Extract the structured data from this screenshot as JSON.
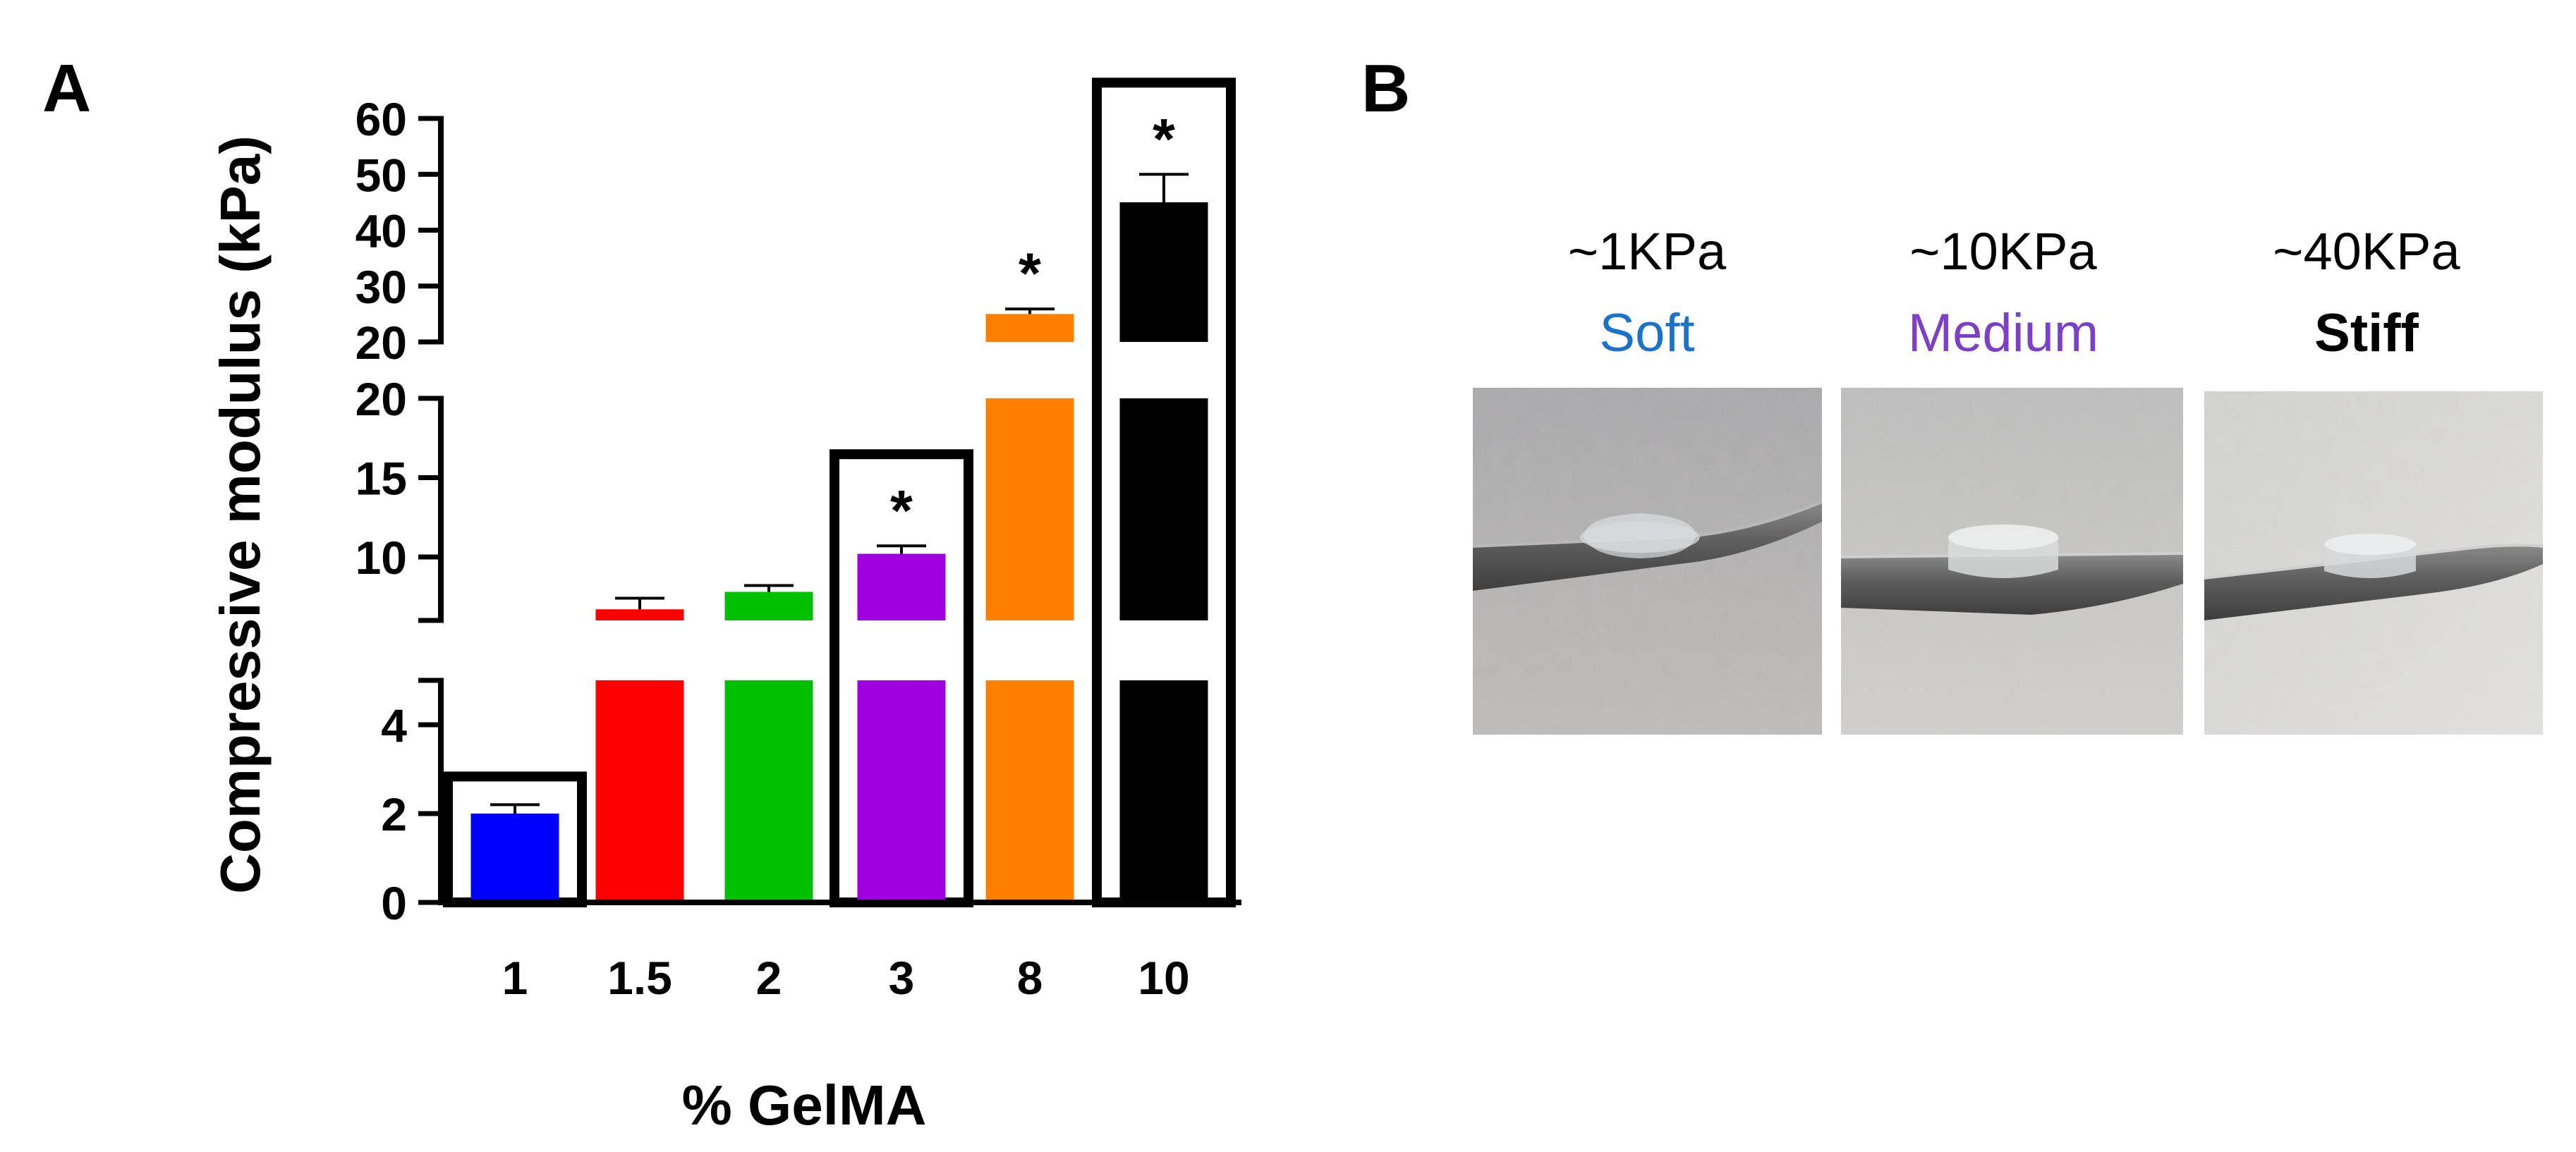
{
  "panels": {
    "a_label": "A",
    "b_label": "B"
  },
  "chart_data": {
    "type": "bar",
    "title": "",
    "xlabel": "% GelMA",
    "ylabel": "Compressive modulus (kPa)",
    "categories": [
      "1",
      "1.5",
      "2",
      "3",
      "8",
      "10"
    ],
    "values": [
      2.0,
      6.7,
      7.8,
      10.2,
      25.0,
      45.0
    ],
    "error": [
      0.2,
      0.7,
      0.4,
      0.5,
      0.9,
      5.0
    ],
    "colors": [
      "#0000ff",
      "#ff0000",
      "#00c000",
      "#a000e0",
      "#ff8000",
      "#000000"
    ],
    "significance": [
      "",
      "",
      "",
      "*",
      "*",
      "*"
    ],
    "highlighted": [
      true,
      false,
      false,
      true,
      false,
      true
    ],
    "axis_breaks": [
      {
        "from": 5,
        "to": 6,
        "ticks": [
          "0",
          "2",
          "4"
        ]
      },
      {
        "from": 6,
        "to": 20,
        "ticks": [
          "10",
          "15",
          "20"
        ]
      },
      {
        "from": 20,
        "to": 60,
        "ticks": [
          "20",
          "30",
          "40",
          "50",
          "60"
        ]
      }
    ],
    "ylim": [
      0,
      60
    ],
    "grid": false,
    "legend": "none"
  },
  "panel_b": {
    "samples": [
      {
        "modulus": "~1KPa",
        "label": "Soft",
        "color": "#1a73c8"
      },
      {
        "modulus": "~10KPa",
        "label": "Medium",
        "color": "#7b3fc8"
      },
      {
        "modulus": "~40KPa",
        "label": "Stiff",
        "color": "#000000"
      }
    ]
  }
}
